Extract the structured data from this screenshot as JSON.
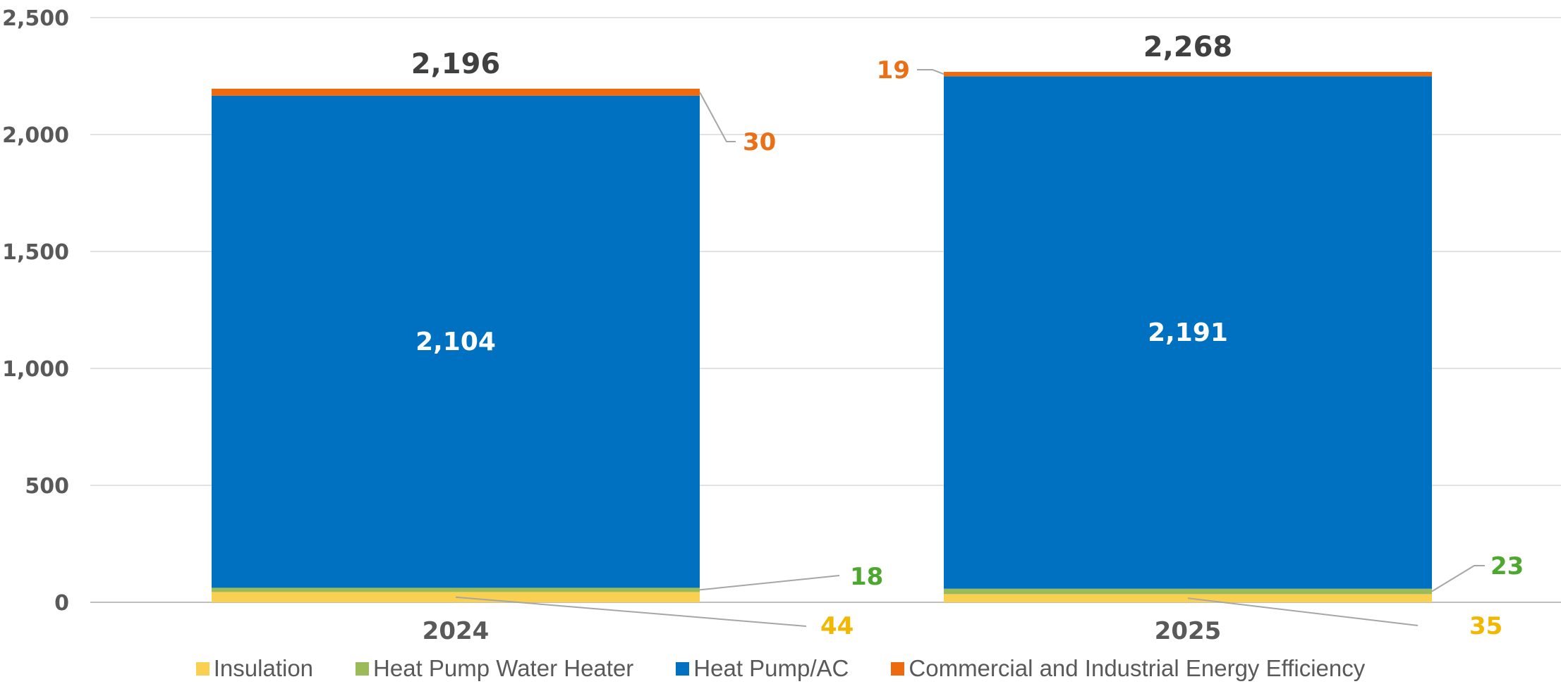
{
  "chart_data": {
    "type": "bar",
    "stacked": true,
    "categories": [
      "2024",
      "2025"
    ],
    "series": [
      {
        "name": "Insulation",
        "color": "#F9D04F",
        "values": [
          44,
          35
        ],
        "label_color": "#F2B700"
      },
      {
        "name": "Heat Pump Water Heater",
        "color": "#9BBB59",
        "values": [
          18,
          23
        ],
        "label_color": "#4EA72E"
      },
      {
        "name": "Heat Pump/AC",
        "color": "#0070C0",
        "values": [
          2104,
          2191
        ],
        "label_color": "#FFFFFF"
      },
      {
        "name": "Commercial and Industrial Energy Efficiency",
        "color": "#ED6A0F",
        "values": [
          30,
          19
        ],
        "label_color": "#E97016"
      }
    ],
    "totals": [
      2196,
      2268
    ],
    "data_labels": {
      "insulation": [
        "44",
        "35"
      ],
      "heat_pump_water_heater": [
        "18",
        "23"
      ],
      "heat_pump_ac": [
        "2,104",
        "2,191"
      ],
      "commercial_industrial": [
        "30",
        "19"
      ],
      "totals": [
        "2,196",
        "2,268"
      ]
    },
    "y_ticks": [
      "0",
      "500",
      "1,000",
      "1,500",
      "2,000",
      "2,500"
    ],
    "ylim": [
      0,
      2500
    ],
    "grid": true,
    "legend_position": "bottom"
  }
}
